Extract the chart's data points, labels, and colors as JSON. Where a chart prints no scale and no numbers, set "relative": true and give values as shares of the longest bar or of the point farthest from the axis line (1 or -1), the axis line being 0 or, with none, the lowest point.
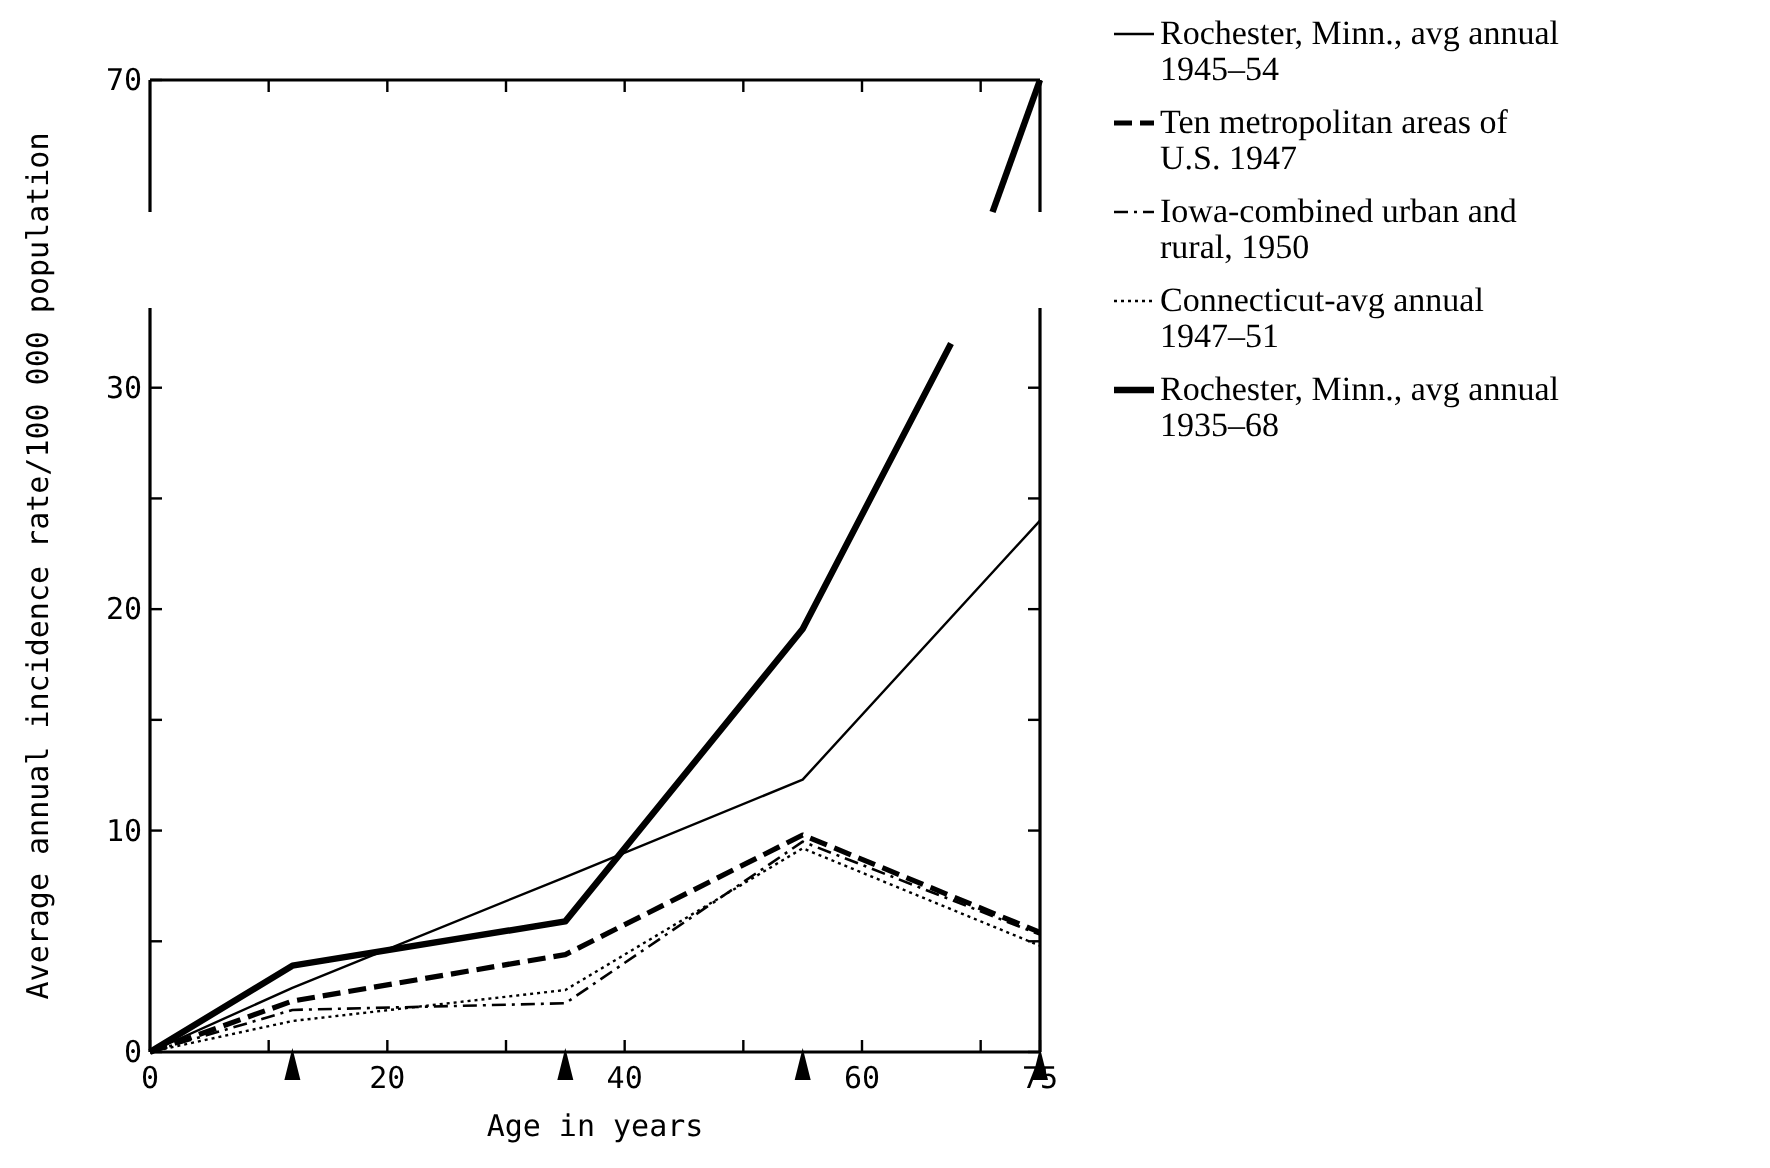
{
  "chart_data": [
    {
      "type": "line",
      "relative": true,
      "xlim": [
        0,
        75
      ],
      "legend": false,
      "annotations": [
        "70"
      ],
      "series": [
        {
          "color": "#000000",
          "line_style": "solid",
          "x": [
            71,
            75
          ],
          "values": [
            0,
            1
          ]
        }
      ]
    },
    {
      "type": "line",
      "xlabel": "Age in years",
      "ylabel": "Average annual incidence rate/100 000 population",
      "x": [
        0,
        12,
        35,
        55,
        75
      ],
      "xlim": [
        0,
        75
      ],
      "xticks": [
        0,
        {
          "value": 10,
          "label": null
        },
        20,
        {
          "value": 30,
          "label": null
        },
        40,
        {
          "value": 50,
          "label": null
        },
        60,
        {
          "value": 70,
          "label": null
        },
        75
      ],
      "ylim": [
        0,
        33.6
      ],
      "yticks": [
        0,
        {
          "value": 5,
          "label": null
        },
        10,
        {
          "value": 15,
          "label": null
        },
        20,
        {
          "value": 25,
          "label": null
        },
        30
      ],
      "grid": false,
      "legend": "right",
      "series": [
        {
          "name": "Rochester, Minn., avg annual 1945–54",
          "color": "#000000",
          "line_style": "solid",
          "values": [
            0,
            2.9,
            7.9,
            12.3,
            24
          ]
        },
        {
          "name": "Ten metropolitan areas of U.S. 1947",
          "color": "#000000",
          "line_style": "dashed",
          "values": [
            0,
            2.3,
            4.4,
            9.8,
            5.4
          ]
        },
        {
          "name": "Iowa-combined urban and rural, 1950",
          "color": "#000000",
          "line_style": "dashdot",
          "values": [
            0,
            1.9,
            2.2,
            9.5,
            5.3
          ]
        },
        {
          "name": "Connecticut-avg annual 1947–51",
          "color": "#000000",
          "line_style": "dotted",
          "values": [
            0,
            1.4,
            2.8,
            9.2,
            4.8
          ]
        },
        {
          "name": "Rochester, Minn., avg annual 1935–68",
          "color": "#000000",
          "line_style": "solid",
          "x": [
            0,
            12,
            35,
            55,
            67.5
          ],
          "values": [
            0,
            3.9,
            5.9,
            19.1,
            32
          ]
        }
      ]
    }
  ]
}
